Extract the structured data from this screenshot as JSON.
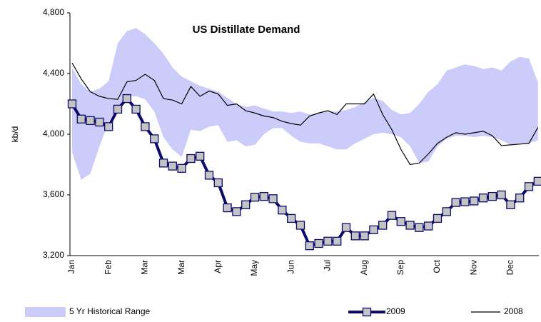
{
  "chart_data": {
    "type": "line",
    "title": "US Distillate Demand",
    "y_axis_label": "kb/d",
    "categories": [
      "Jan",
      null,
      null,
      null,
      "Feb",
      null,
      null,
      null,
      "Mar",
      null,
      null,
      null,
      "Mar",
      null,
      null,
      null,
      "Apr",
      null,
      null,
      null,
      "May",
      null,
      null,
      null,
      "Jun",
      null,
      null,
      null,
      "Jul",
      null,
      null,
      null,
      "Aug",
      null,
      null,
      null,
      "Sep",
      null,
      null,
      null,
      "Oct",
      null,
      null,
      null,
      "Nov",
      null,
      null,
      null,
      "Dec",
      null,
      null,
      null
    ],
    "ylim": [
      3200,
      4800
    ],
    "yticks": [
      {
        "value": 3200,
        "label": "3,200"
      },
      {
        "value": 3600,
        "label": "3,600"
      },
      {
        "value": 4000,
        "label": "4,000"
      },
      {
        "value": 4400,
        "label": "4,400"
      },
      {
        "value": 4800,
        "label": "4,800"
      }
    ],
    "series": [
      {
        "name": "5 Yr Historical Range",
        "kind": "range",
        "color": "#ccccfb",
        "low": [
          3880,
          3700,
          3740,
          3920,
          4080,
          4180,
          4250,
          4250,
          4230,
          4150,
          3980,
          3900,
          3850,
          4030,
          4020,
          4050,
          4060,
          3950,
          3960,
          3920,
          3930,
          4000,
          4040,
          4040,
          3990,
          3950,
          3940,
          3940,
          3920,
          3900,
          3900,
          3940,
          3970,
          4000,
          4010,
          4000,
          3980,
          3920,
          3810,
          3820,
          3920,
          3970,
          3990,
          3990,
          3980,
          3990,
          3980,
          3960,
          3930,
          3940,
          3940,
          3960
        ],
        "high": [
          4440,
          4330,
          4280,
          4300,
          4350,
          4600,
          4680,
          4700,
          4660,
          4600,
          4530,
          4440,
          4380,
          4350,
          4320,
          4300,
          4280,
          4240,
          4200,
          4180,
          4190,
          4170,
          4150,
          4150,
          4140,
          4150,
          4130,
          4140,
          4150,
          4150,
          4160,
          4180,
          4210,
          4240,
          4220,
          4160,
          4130,
          4140,
          4200,
          4280,
          4330,
          4420,
          4440,
          4460,
          4450,
          4430,
          4440,
          4420,
          4480,
          4510,
          4500,
          4340
        ]
      },
      {
        "name": "2009",
        "kind": "markers",
        "color": "#0b0b6e",
        "values": [
          4200,
          4100,
          4090,
          4080,
          4050,
          4165,
          4235,
          4165,
          4050,
          3970,
          3810,
          3790,
          3775,
          3840,
          3855,
          3730,
          3680,
          3515,
          3490,
          3535,
          3585,
          3590,
          3575,
          3500,
          3445,
          3400,
          3265,
          3280,
          3295,
          3295,
          3385,
          3330,
          3330,
          3370,
          3400,
          3465,
          3425,
          3400,
          3385,
          3395,
          3445,
          3490,
          3550,
          3555,
          3560,
          3580,
          3590,
          3600,
          3535,
          3580,
          3655,
          3690
        ]
      },
      {
        "name": "2008",
        "kind": "line",
        "color": "#000000",
        "values": [
          4470,
          4365,
          4280,
          4250,
          4235,
          4230,
          4345,
          4355,
          4395,
          4355,
          4235,
          4225,
          4200,
          4315,
          4250,
          4285,
          4265,
          4190,
          4200,
          4155,
          4140,
          4120,
          4110,
          4085,
          4070,
          4060,
          4120,
          4140,
          4155,
          4130,
          4200,
          4200,
          4200,
          4265,
          4130,
          4030,
          3900,
          3800,
          3810,
          3870,
          3940,
          3980,
          4010,
          4000,
          4010,
          4020,
          3990,
          3925,
          3930,
          3935,
          3940,
          4045
        ]
      }
    ]
  }
}
